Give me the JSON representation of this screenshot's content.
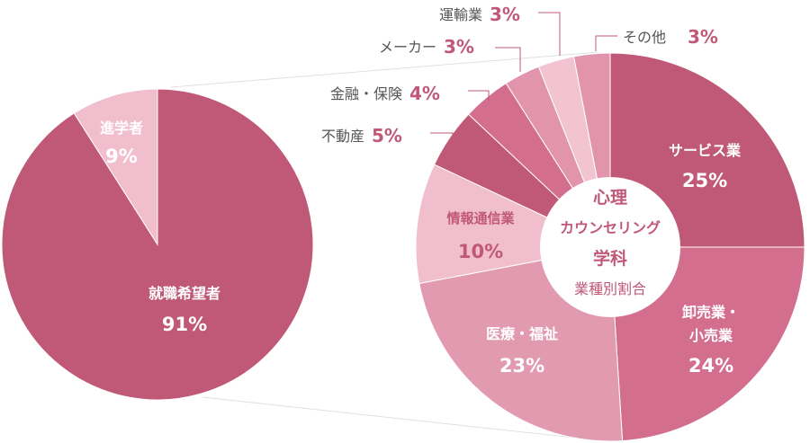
{
  "colors": {
    "main": "#c05878",
    "light": "#f1bece",
    "mid": "#d46e8e",
    "pale": "#e29ab0",
    "paler": "#eaaabf",
    "palest": "#f2c4d2",
    "small_pink": "#e294ad",
    "line": "#c05878",
    "text_dark": "#555555"
  },
  "chart_data": [
    {
      "type": "pie",
      "slices": [
        {
          "label": "就職希望者",
          "value": 91,
          "pct_label": "91%"
        },
        {
          "label": "進学者",
          "value": 9,
          "pct_label": "9%"
        }
      ]
    },
    {
      "type": "pie",
      "center": {
        "title_line1": "心理",
        "title_line2": "カウンセリング",
        "title_line3": "学科",
        "subtitle": "業種別割合"
      },
      "slices": [
        {
          "label": "サービス業",
          "value": 25,
          "pct_label": "25%"
        },
        {
          "label_line1": "卸売業・",
          "label_line2": "小売業",
          "value": 24,
          "pct_label": "24%"
        },
        {
          "label": "医療・福祉",
          "value": 23,
          "pct_label": "23%"
        },
        {
          "label": "情報通信業",
          "value": 10,
          "pct_label": "10%"
        },
        {
          "label": "不動産",
          "value": 5,
          "pct_label": "5%"
        },
        {
          "label": "金融・保険",
          "value": 4,
          "pct_label": "4%"
        },
        {
          "label": "メーカー",
          "value": 3,
          "pct_label": "3%"
        },
        {
          "label": "運輸業",
          "value": 3,
          "pct_label": "3%"
        },
        {
          "label": "その他",
          "value": 3,
          "pct_label": "3%"
        }
      ]
    }
  ]
}
